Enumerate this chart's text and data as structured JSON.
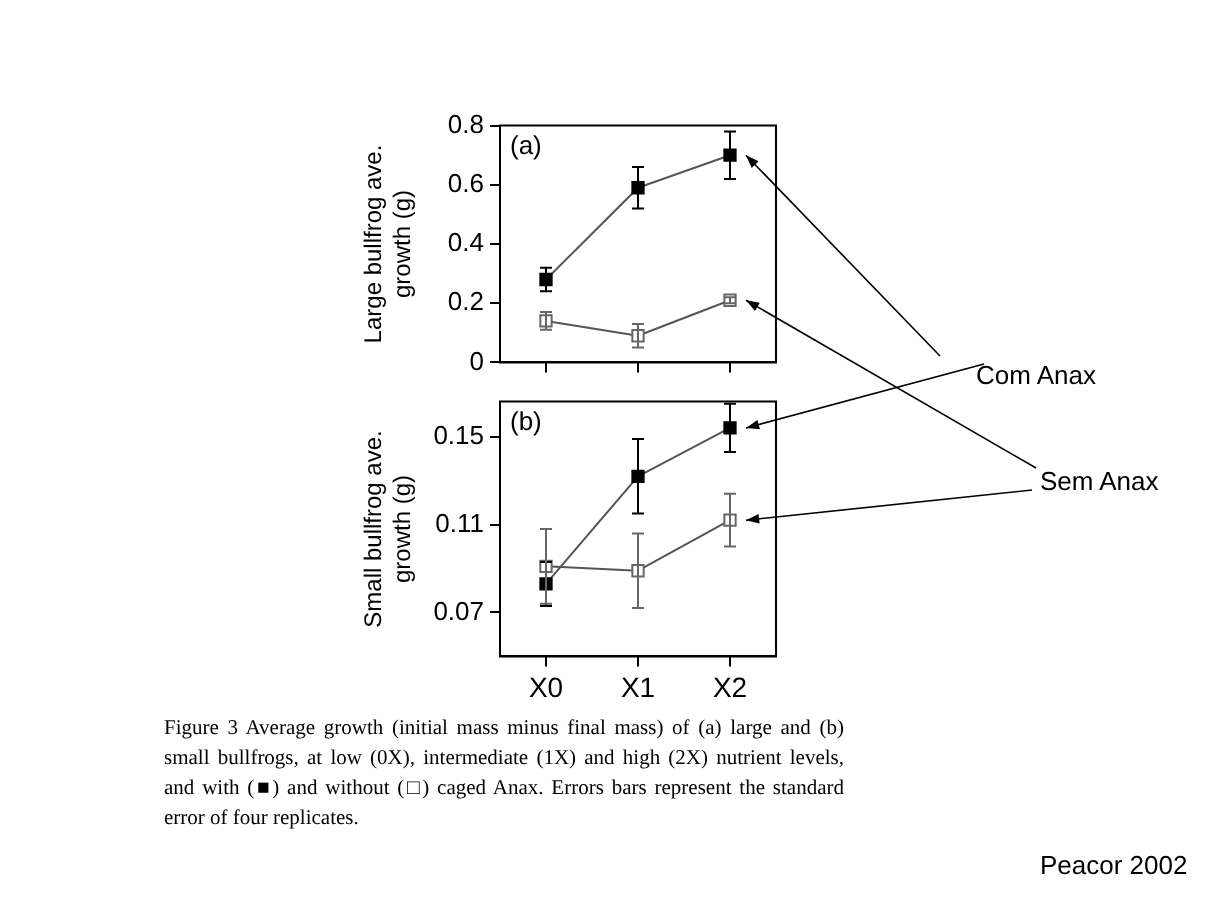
{
  "chart_data": [
    {
      "type": "line",
      "title": "(a)",
      "ylabel": "Large bullfrog ave.\ngrowth (g)",
      "categories": [
        null,
        null,
        null
      ],
      "series": [
        {
          "color": "#000000",
          "values": [
            0.28,
            0.59,
            0.7
          ],
          "errors": [
            0.04,
            0.07,
            0.08
          ]
        },
        {
          "color": "#666666",
          "values": [
            0.14,
            0.09,
            0.21
          ],
          "errors": [
            0.03,
            0.04,
            0.01
          ]
        }
      ],
      "ylim": [
        0,
        0.8
      ],
      "yticks": [
        0,
        0.2,
        0.4,
        0.6,
        0.8
      ],
      "marker": "square",
      "line_style": "solid",
      "grid": false,
      "legend": false,
      "tick_labels": "y",
      "annotations": [
        "Com Anax",
        "Sem Anax"
      ]
    },
    {
      "type": "line",
      "title": "(b)",
      "ylabel": "Small bullfrog ave.\ngrowth (g)",
      "categories": [
        "X0",
        "X1",
        "X2"
      ],
      "series": [
        {
          "color": "#000000",
          "values": [
            0.083,
            0.132,
            0.154
          ],
          "errors": [
            0.01,
            0.017,
            0.011
          ]
        },
        {
          "color": "#666666",
          "values": [
            0.091,
            0.089,
            0.112
          ],
          "errors": [
            0.017,
            0.017,
            0.012
          ]
        }
      ],
      "ylim": [
        0.05,
        0.166
      ],
      "yticks": [
        0.07,
        0.11,
        0.15
      ],
      "marker": "square",
      "line_style": "solid",
      "grid": false,
      "legend": false,
      "annotations": [
        "Figure 3 Average growth (initial mass minus final mass) of (a) large and (b) small bullfrogs, at low (0X), intermediate (1X) and high (2X) nutrient levels, and with (■) and without (□) caged Anax. Errors bars represent the standard error of four replicates.",
        "Peacor 2002"
      ]
    }
  ]
}
